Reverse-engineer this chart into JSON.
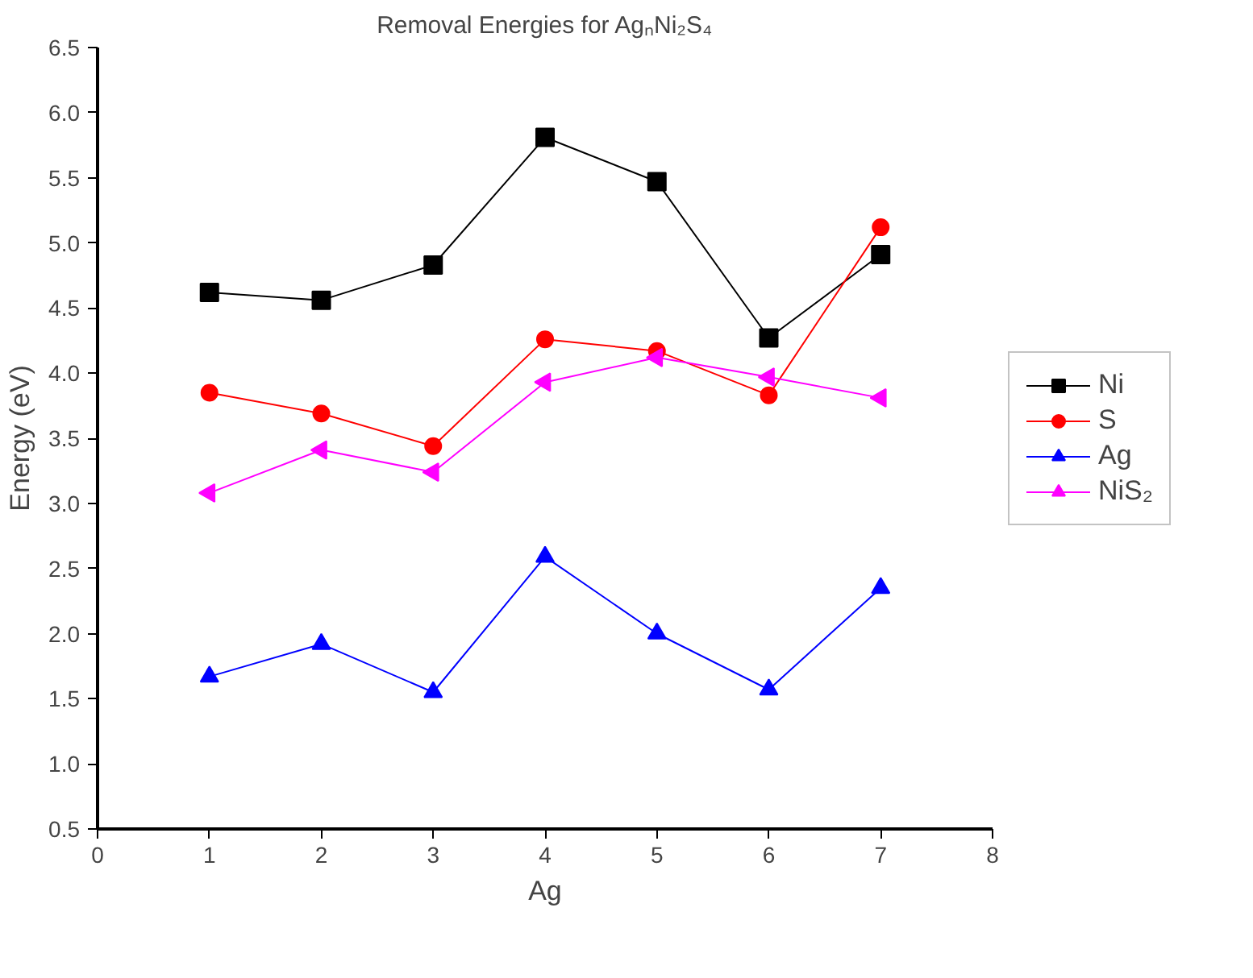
{
  "chart_data": {
    "type": "line",
    "title": "Removal Energies for AgₙNi₂S₄",
    "xlabel": "Ag",
    "ylabel": "Energy (eV)",
    "x": [
      1,
      2,
      3,
      4,
      5,
      6,
      7
    ],
    "xlim": [
      0,
      8
    ],
    "xticks": [
      0,
      1,
      2,
      3,
      4,
      5,
      6,
      7,
      8
    ],
    "ylim": [
      0.5,
      6.5
    ],
    "yticks": [
      0.5,
      {
        "value": 1,
        "label": "1.0"
      },
      1.5,
      {
        "value": 2,
        "label": "2.0"
      },
      2.5,
      {
        "value": 3,
        "label": "3.0"
      },
      3.5,
      {
        "value": 4,
        "label": "4.0"
      },
      4.5,
      {
        "value": 5,
        "label": "5.0"
      },
      5.5,
      {
        "value": 6,
        "label": "6.0"
      },
      6.5
    ],
    "grid": false,
    "legend": "right",
    "series": [
      {
        "name": "Ni",
        "color": "#000000",
        "marker": "square",
        "values": [
          4.62,
          4.56,
          4.83,
          5.81,
          5.47,
          4.27,
          4.91
        ]
      },
      {
        "name": "S",
        "color": "#ff0000",
        "marker": "circle",
        "values": [
          3.85,
          3.69,
          3.44,
          4.26,
          4.17,
          3.83,
          5.12
        ]
      },
      {
        "name": "Ag",
        "color": "#0000ff",
        "marker": "triangle",
        "values": [
          1.67,
          1.92,
          1.55,
          2.59,
          2.0,
          1.57,
          2.35
        ]
      },
      {
        "name": "NiS₂",
        "color": "#ff00ff",
        "marker": "triangle_left",
        "values": [
          3.08,
          3.41,
          3.24,
          3.93,
          4.12,
          3.97,
          3.81
        ]
      }
    ]
  }
}
